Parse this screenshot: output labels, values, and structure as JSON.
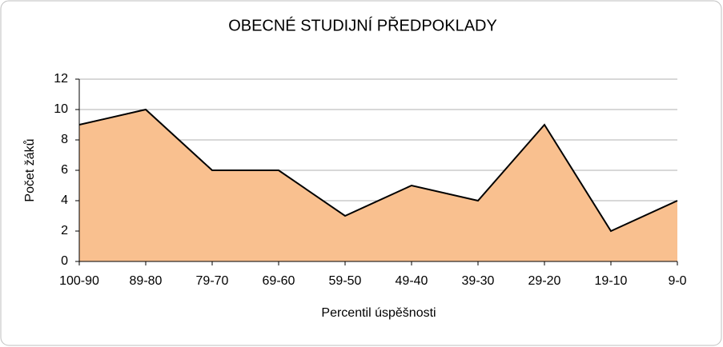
{
  "chart_data": {
    "type": "area",
    "title": "OBECNÉ STUDIJNÍ PŘEDPOKLADY",
    "x_label": "Percentil úspěšnosti",
    "y_label": "Počet žáků",
    "categories": [
      "100-90",
      "89-80",
      "79-70",
      "69-60",
      "59-50",
      "49-40",
      "39-30",
      "29-20",
      "19-10",
      "9-0"
    ],
    "values": [
      9,
      10,
      6,
      6,
      3,
      5,
      4,
      9,
      2,
      4
    ],
    "color": "#f9c08f",
    "line_color": "#000000",
    "ylim": [
      0,
      12
    ],
    "yticks": [
      0,
      2,
      4,
      6,
      8,
      10,
      12
    ],
    "grid": true
  }
}
